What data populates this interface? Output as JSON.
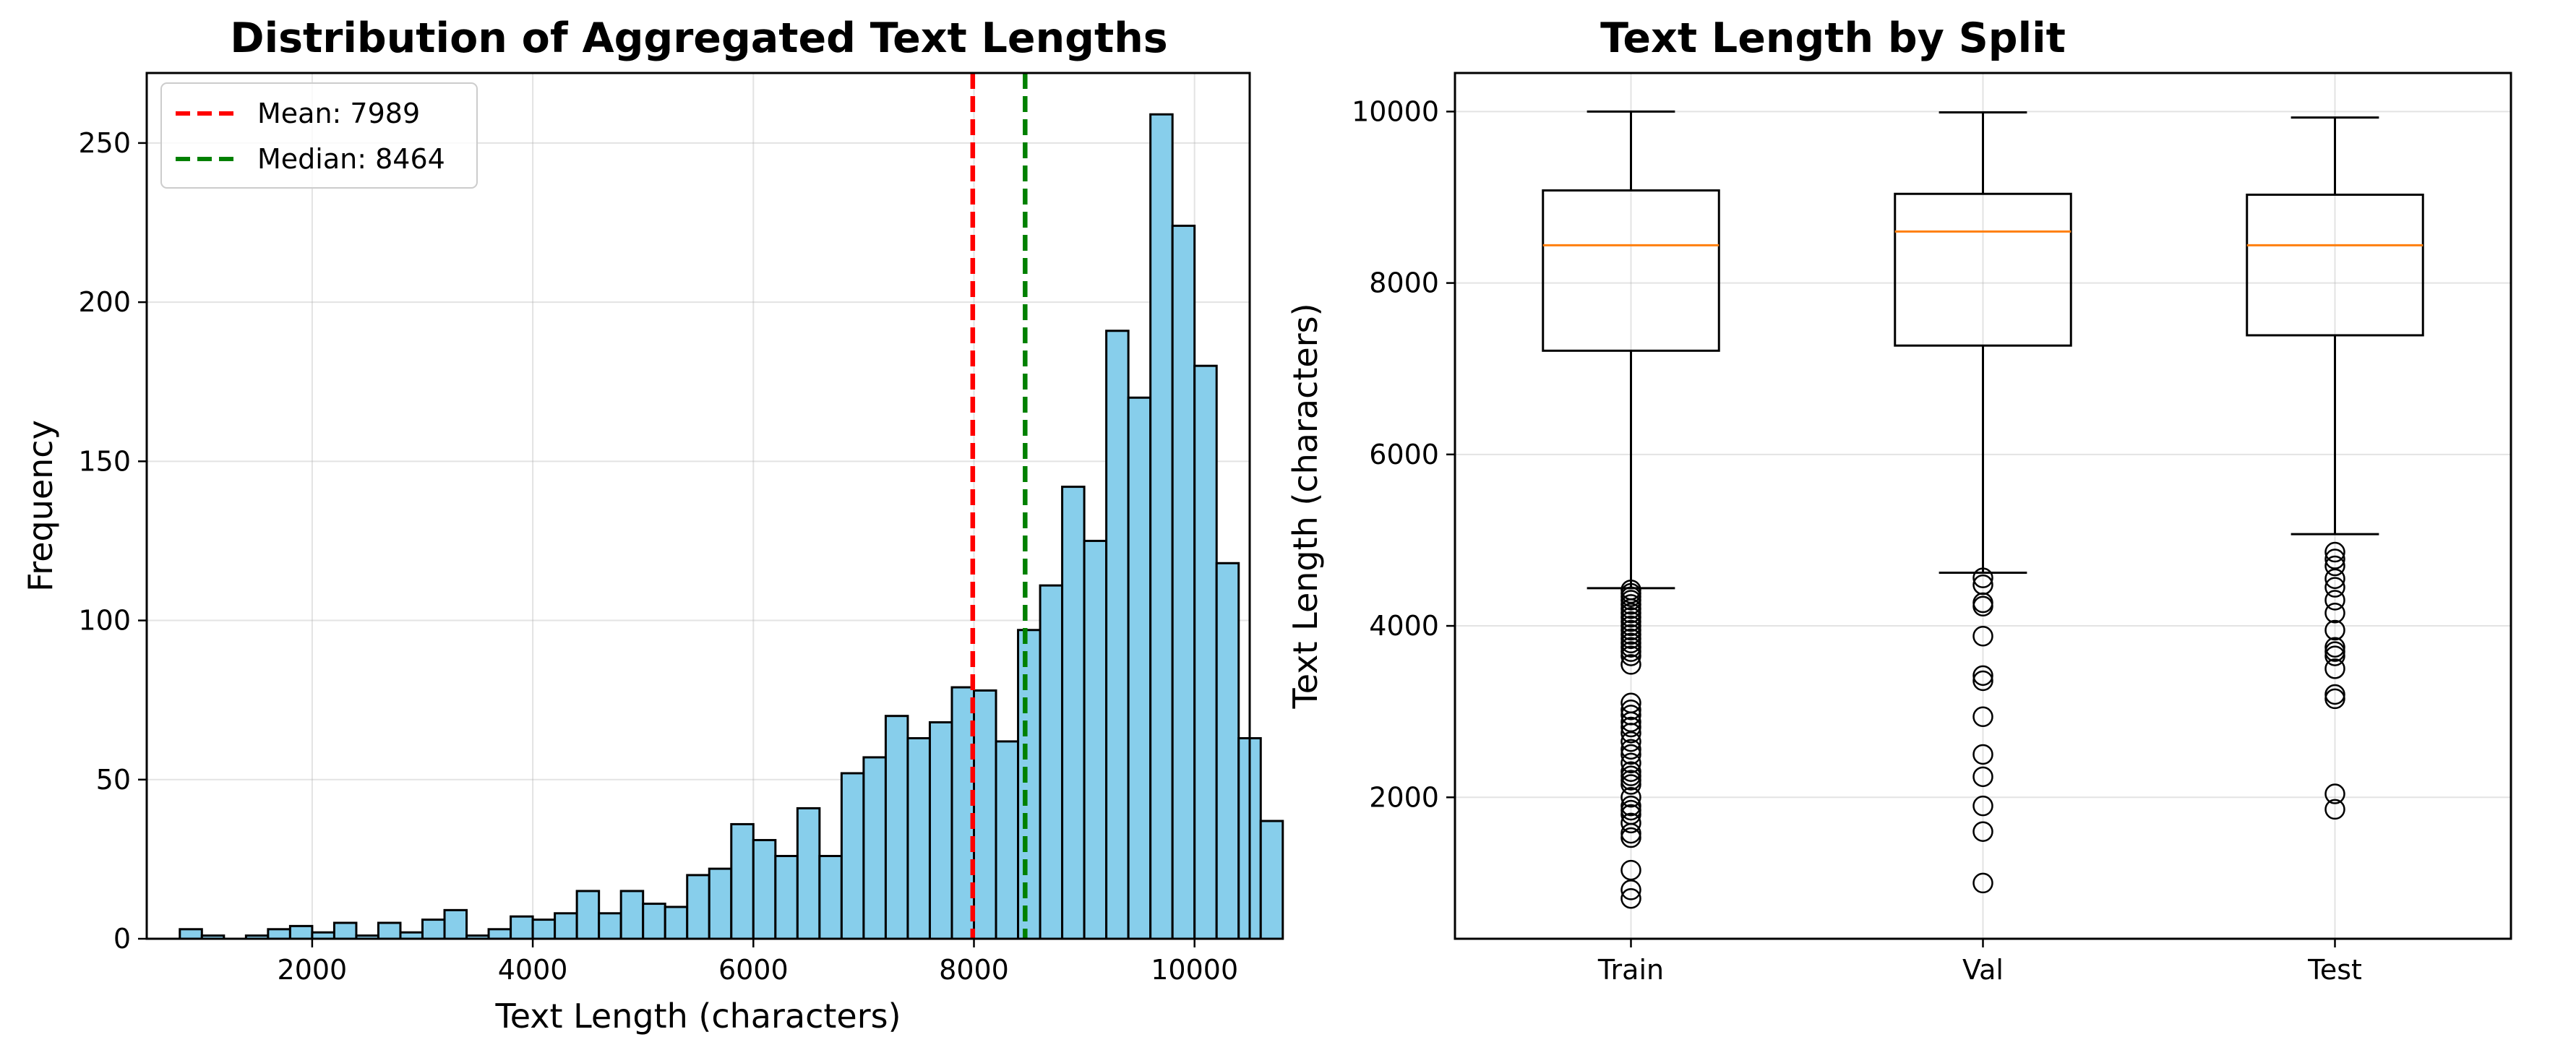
{
  "chart_data": [
    {
      "type": "histogram",
      "title": "Distribution of Aggregated Text Lengths",
      "xlabel": "Text Length (characters)",
      "ylabel": "Frequency",
      "xlim": [
        500,
        10500
      ],
      "ylim": [
        0,
        272
      ],
      "xticks": [
        2000,
        4000,
        6000,
        8000,
        10000
      ],
      "yticks": [
        0,
        50,
        100,
        150,
        200,
        250
      ],
      "grid": true,
      "bar_color": "#87CEEB",
      "bin_start": 800,
      "bin_width": 200,
      "counts": [
        3,
        1,
        0,
        1,
        3,
        4,
        2,
        5,
        1,
        5,
        2,
        6,
        9,
        1,
        3,
        7,
        6,
        8,
        15,
        8,
        15,
        11,
        10,
        20,
        22,
        36,
        31,
        26,
        41,
        26,
        52,
        57,
        70,
        63,
        68,
        79,
        78,
        62,
        97,
        111,
        142,
        125,
        191,
        170,
        259,
        224,
        180,
        118,
        63,
        37
      ],
      "vlines": [
        {
          "label": "Mean: 7989",
          "value": 7989,
          "color": "#ff0000"
        },
        {
          "label": "Median: 8464",
          "value": 8464,
          "color": "#008000"
        }
      ],
      "legend": "top-left"
    },
    {
      "type": "box",
      "title": "Text Length by Split",
      "xlabel": "",
      "ylabel": "Text Length (characters)",
      "ylim": [
        350,
        10450
      ],
      "yticks": [
        2000,
        4000,
        6000,
        8000,
        10000
      ],
      "grid": true,
      "median_color": "#ff7f0e",
      "categories": [
        "Train",
        "Val",
        "Test"
      ],
      "boxes": [
        {
          "label": "Train",
          "whisker_low": 4440,
          "q1": 7210,
          "median": 8440,
          "q3": 9080,
          "whisker_high": 10000,
          "outliers": [
            4420,
            4380,
            4340,
            4300,
            4250,
            4200,
            4150,
            4100,
            4050,
            4000,
            3950,
            3900,
            3850,
            3800,
            3750,
            3700,
            3650,
            3550,
            3100,
            3020,
            2960,
            2880,
            2820,
            2750,
            2650,
            2560,
            2500,
            2400,
            2300,
            2250,
            2200,
            2150,
            2000,
            1900,
            1850,
            1800,
            1700,
            1580,
            1530,
            1150,
            920,
            820
          ]
        },
        {
          "label": "Val",
          "whisker_low": 4620,
          "q1": 7270,
          "median": 8600,
          "q3": 9040,
          "whisker_high": 9990,
          "outliers": [
            4560,
            4480,
            4270,
            4230,
            3880,
            3420,
            3360,
            2940,
            2500,
            2240,
            1900,
            1600,
            1000
          ]
        },
        {
          "label": "Test",
          "whisker_low": 5070,
          "q1": 7390,
          "median": 8440,
          "q3": 9030,
          "whisker_high": 9930,
          "outliers": [
            4860,
            4780,
            4700,
            4550,
            4450,
            4300,
            4150,
            3950,
            3750,
            3700,
            3650,
            3500,
            3200,
            3150,
            2040,
            1860
          ]
        }
      ]
    }
  ]
}
